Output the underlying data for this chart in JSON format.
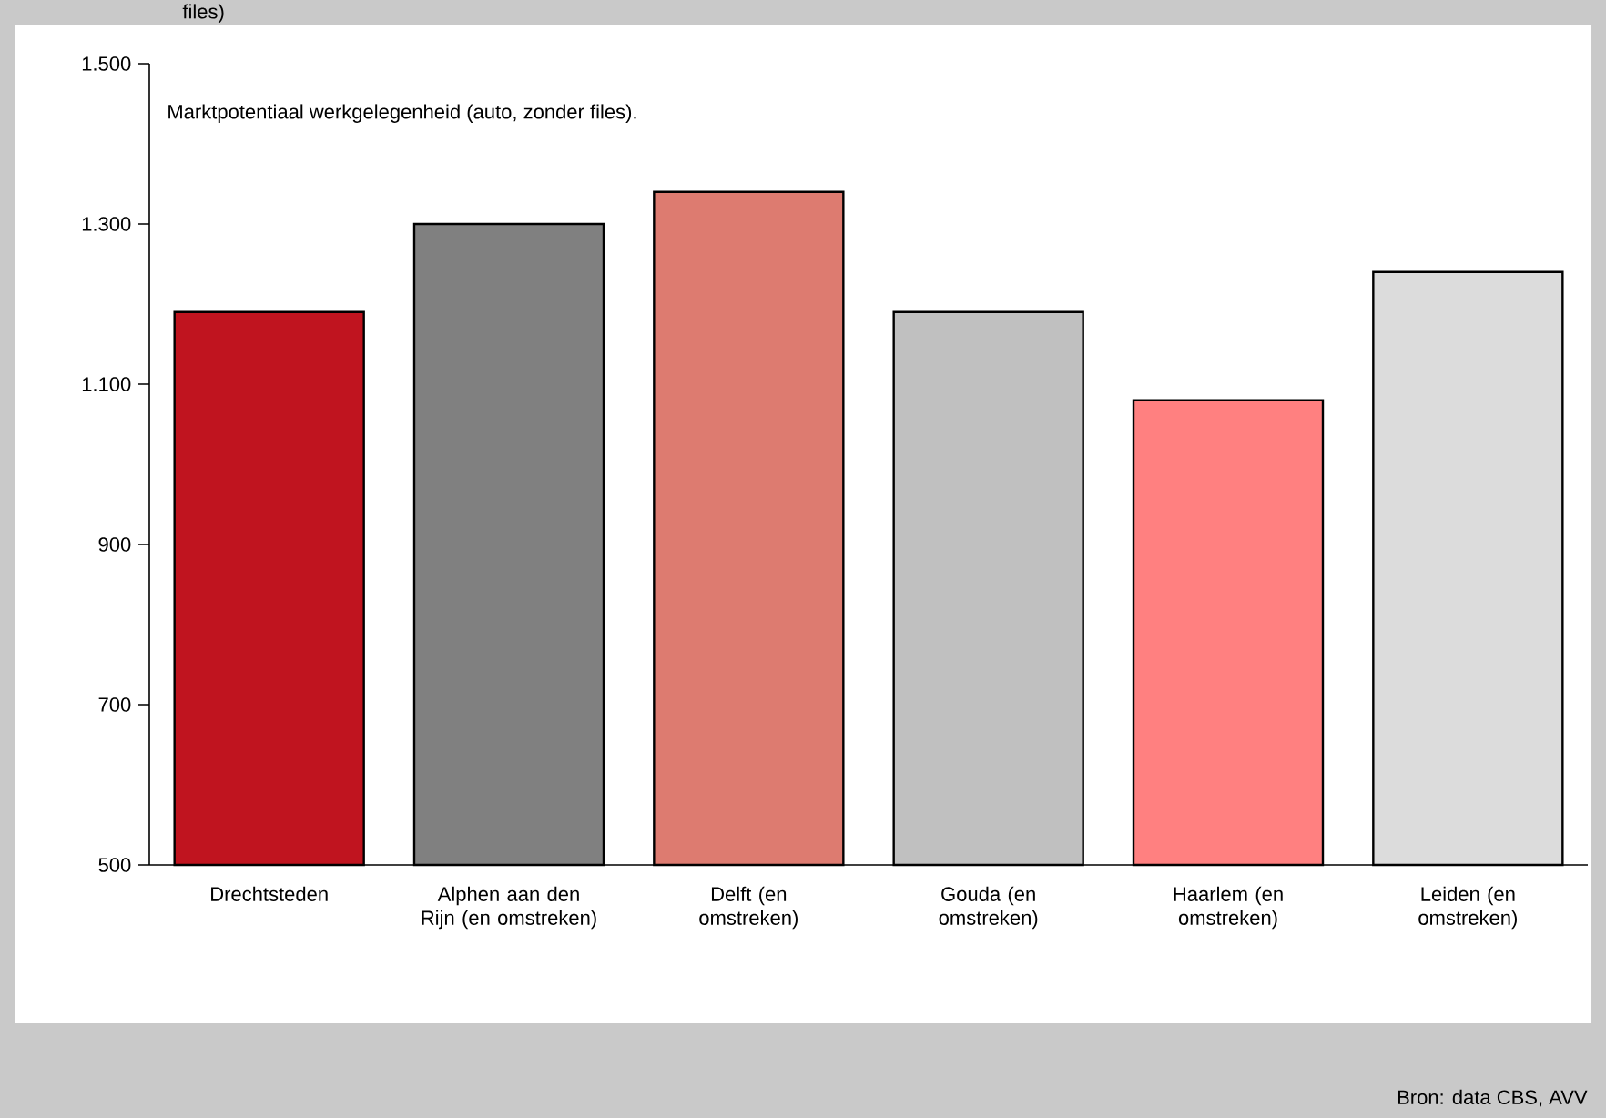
{
  "chart_data": {
    "type": "bar",
    "title": "files)",
    "categories": [
      "Drechtsteden",
      "Alphen aan den Rijn (en omstreken)",
      "Delft (en omstreken)",
      "Gouda (en omstreken)",
      "Haarlem (en omstreken)",
      "Leiden (en omstreken)"
    ],
    "values": [
      1190,
      1300,
      1340,
      1190,
      1080,
      1240
    ],
    "colors": [
      "#c0141f",
      "#808080",
      "#dd7b70",
      "#c0c0c0",
      "#ff8080",
      "#dcdcdc"
    ],
    "ylim": [
      500,
      1500
    ],
    "yticks": [
      500,
      700,
      900,
      {
        "value": 1100,
        "label": "1.100"
      },
      {
        "value": 1300,
        "label": "1.300"
      },
      {
        "value": 1500,
        "label": "1.500"
      }
    ],
    "annotations": [
      "Marktpotentiaal werkgelegenheid (auto, zonder files).",
      "Bron: data CBS, AVV"
    ]
  }
}
